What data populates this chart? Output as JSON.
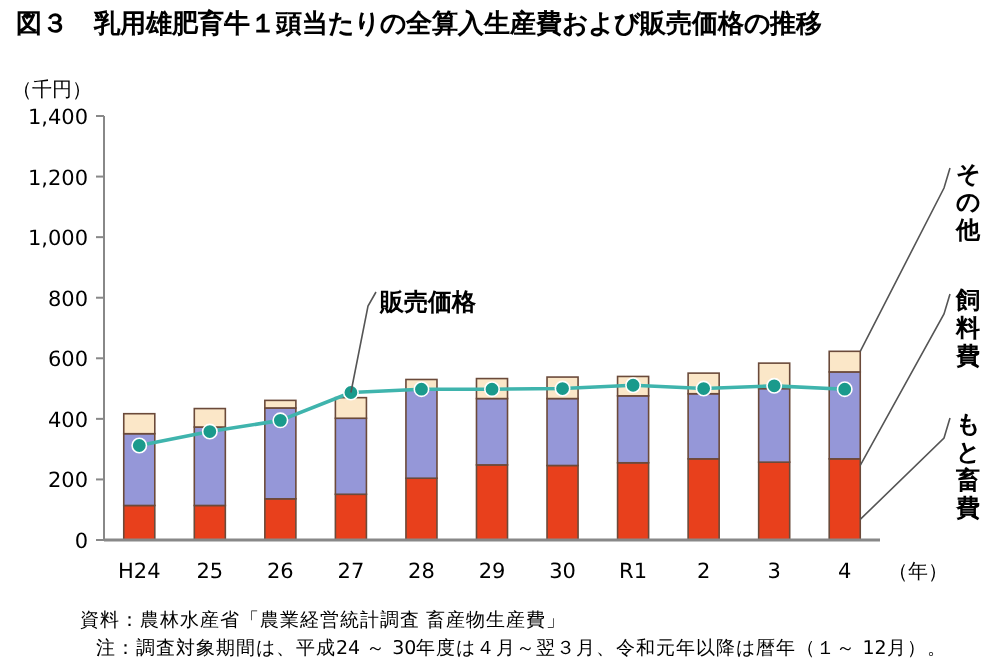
{
  "chart_data": {
    "type": "bar",
    "stacked": true,
    "title": "図３　乳用雄肥育牛１頭当たりの全算入生産費および販売価格の推移",
    "ylabel": "（千円）",
    "xlabel": "（年）",
    "categories": [
      "H24",
      "25",
      "26",
      "27",
      "28",
      "29",
      "30",
      "R1",
      "2",
      "3",
      "4"
    ],
    "ylim": [
      0,
      1400
    ],
    "yticks": [
      0,
      200,
      400,
      600,
      800,
      {
        "value": 1000,
        "label": "1,000"
      },
      {
        "value": 1200,
        "label": "1,200"
      },
      {
        "value": 1400,
        "label": "1,400"
      }
    ],
    "series": [
      {
        "name": "もと畜費",
        "color": "#e8401c",
        "values": [
          114,
          114,
          136,
          151,
          204,
          248,
          246,
          255,
          268,
          257,
          268
        ]
      },
      {
        "name": "飼料費",
        "color": "#9597d8",
        "values": [
          237,
          259,
          300,
          251,
          292,
          219,
          221,
          221,
          215,
          243,
          287
        ]
      },
      {
        "name": "その他",
        "color": "#fbe7c8",
        "values": [
          66,
          61,
          25,
          68,
          34,
          66,
          71,
          64,
          68,
          84,
          68
        ]
      },
      {
        "name": "販売価格",
        "type": "line",
        "marker": "circle",
        "color": "#1a9a8c",
        "values": [
          312,
          358,
          395,
          487,
          498,
          498,
          500,
          511,
          500,
          509,
          498
        ]
      }
    ],
    "annotations": [
      "資料：農林水産省「農業経営統計調査 畜産物生産費」",
      "注：調査対象期間は、平成24 ～ 30年度は４月～翌３月、令和元年以降は暦年（１～ 12月）。"
    ]
  }
}
